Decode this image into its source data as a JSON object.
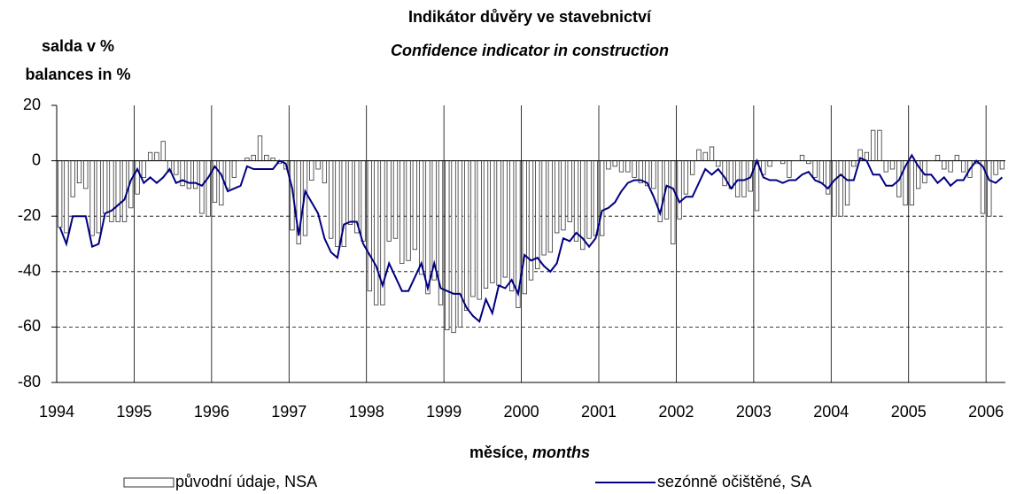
{
  "chart_data": {
    "type": "bar",
    "title": "Indikátor důvěry ve stavebnictví",
    "subtitle": "Confidence indicator in construction",
    "y_label": [
      "salda v %",
      "balances in %"
    ],
    "x_label": [
      "měsíce, ",
      "months"
    ],
    "categories": [
      null,
      null,
      null,
      null,
      null,
      null,
      null,
      null,
      null,
      null,
      null,
      null,
      null,
      null,
      null,
      null,
      null,
      null,
      null,
      null,
      null,
      null,
      null,
      null,
      null,
      null,
      null,
      null,
      null,
      null,
      null,
      null,
      null,
      null,
      null,
      null,
      null,
      null,
      null,
      null,
      null,
      null,
      null,
      null,
      null,
      null,
      null,
      null,
      null,
      null,
      null,
      null,
      null,
      null,
      null,
      null,
      null,
      null,
      null,
      null,
      null,
      null,
      null,
      null,
      null,
      null,
      null,
      null,
      null,
      null,
      null,
      null,
      null,
      null,
      null,
      null,
      null,
      null,
      null,
      null,
      null,
      null,
      null,
      null,
      null,
      null,
      null,
      null,
      null,
      null,
      null,
      null,
      null,
      null,
      null,
      null,
      null,
      null,
      null,
      null,
      null,
      null,
      null,
      null,
      null,
      null,
      null,
      null,
      null,
      null,
      null,
      null,
      null,
      null,
      null,
      null,
      null,
      null,
      null,
      null,
      null,
      null,
      null,
      null,
      null,
      null,
      null,
      null,
      null,
      null,
      null,
      null,
      null,
      null,
      null,
      null,
      null,
      null,
      null,
      null,
      null,
      null,
      null,
      null,
      null,
      null,
      null
    ],
    "series": [
      {
        "name": "původní údaje, NSA",
        "type": "bar",
        "color": "#ffffff",
        "values": [
          -24,
          -26,
          -13,
          -8,
          -10,
          -27,
          -26,
          -19,
          -22,
          -22,
          -22,
          -17,
          -12,
          -6,
          3,
          3,
          7,
          -4,
          -5,
          -9,
          -10,
          -10,
          -19,
          -20,
          -15,
          -16,
          -10,
          -6,
          0,
          1,
          2,
          9,
          2,
          1,
          -1,
          -3,
          -25,
          -30,
          -27,
          -7,
          -3,
          -8,
          -28,
          -31,
          -31,
          -23,
          -26,
          -29,
          -47,
          -52,
          -52,
          -29,
          -28,
          -37,
          -36,
          -32,
          -41,
          -48,
          -43,
          -52,
          -61,
          -62,
          -60,
          -54,
          -49,
          -50,
          -46,
          -44,
          -45,
          -42,
          -47,
          -53,
          -48,
          -43,
          -39,
          -34,
          -33,
          -26,
          -25,
          -22,
          -29,
          -32,
          -28,
          -27,
          -27,
          -3,
          -2,
          -4,
          -4,
          -6,
          -8,
          -9,
          -10,
          -22,
          -21,
          -30,
          -21,
          -12,
          -5,
          4,
          3,
          5,
          -2,
          -9,
          -10,
          -13,
          -13,
          -11,
          -18,
          -5,
          -2,
          0,
          -1,
          -6,
          0,
          2,
          -1,
          -6,
          -8,
          -12,
          -20,
          -20,
          -16,
          -2,
          4,
          3,
          11,
          11,
          -4,
          -3,
          -13,
          -16,
          -16,
          -10,
          -8,
          0,
          2,
          -3,
          -4,
          2,
          -4,
          -6,
          -1,
          -19,
          -20,
          -5,
          -3
        ]
      },
      {
        "name": "sezónně očištěné, SA",
        "type": "line",
        "color": "#000080",
        "values": [
          -24,
          -30,
          -20,
          -20,
          -20,
          -31,
          -30,
          -19,
          -18,
          -16,
          -14,
          -7,
          -3,
          -8,
          -6,
          -8,
          -6,
          -3,
          -8,
          -7,
          -8,
          -8,
          -9,
          -6,
          -2,
          -5,
          -11,
          -10,
          -9,
          -2,
          -3,
          -3,
          -3,
          -3,
          0,
          -1,
          -10,
          -27,
          -11,
          -15,
          -19,
          -28,
          -33,
          -35,
          -23,
          -22,
          -22,
          -30,
          -34,
          -38,
          -45,
          -37,
          -42,
          -47,
          -47,
          -42,
          -37,
          -46,
          -37,
          -46,
          -47,
          -48,
          -48,
          -53,
          -56,
          -58,
          -50,
          -55,
          -45,
          -46,
          -43,
          -48,
          -34,
          -36,
          -35,
          -38,
          -40,
          -37,
          -28,
          -29,
          -26,
          -28,
          -31,
          -28,
          -18,
          -17,
          -15,
          -11,
          -8,
          -7,
          -7,
          -8,
          -13,
          -19,
          -9,
          -10,
          -15,
          -13,
          -13,
          -8,
          -3,
          -5,
          -3,
          -6,
          -10,
          -7,
          -7,
          -6,
          0,
          -6,
          -7,
          -7,
          -8,
          -7,
          -7,
          -5,
          -4,
          -7,
          -8,
          -10,
          -7,
          -5,
          -7,
          -7,
          1,
          0,
          -5,
          -5,
          -9,
          -9,
          -7,
          -2,
          2,
          -2,
          -5,
          -5,
          -8,
          -6,
          -9,
          -7,
          -7,
          -3,
          0,
          -2,
          -7,
          -8,
          -6
        ]
      }
    ],
    "xlim": [
      1994,
      2006.25
    ],
    "xticks": [
      1994,
      1995,
      1996,
      1997,
      1998,
      1999,
      2000,
      2001,
      2002,
      2003,
      2004,
      2005,
      2006
    ],
    "ylim": [
      -80,
      20
    ],
    "yticks": [
      -80,
      -60,
      -40,
      -20,
      0,
      20
    ],
    "grid": true
  }
}
